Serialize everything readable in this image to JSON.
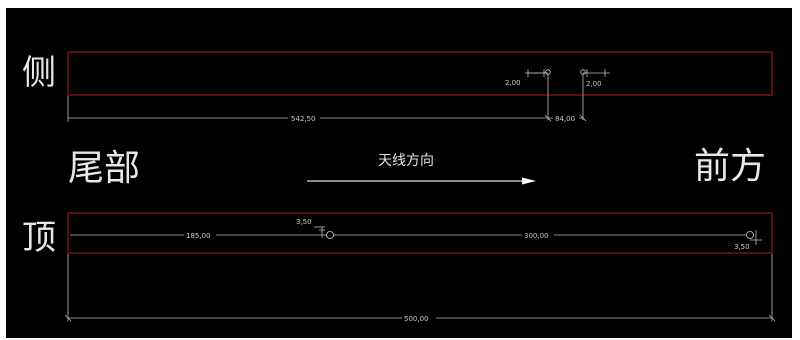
{
  "colors": {
    "background": "#000000",
    "outline": "#9e1b1b",
    "dimension": "#bdbdbd",
    "label": "#e8e8e8"
  },
  "labels": {
    "side": "侧",
    "top": "顶",
    "tail": "尾部",
    "front": "前方",
    "antenna_direction": "天线方向"
  },
  "dimensions": {
    "side_hole_left_offset": "2,00",
    "side_hole_right_offset": "2,00",
    "side_length_to_hole": "542,50",
    "side_hole_spacing": "84,00",
    "top_hole_offset_a": "3,50",
    "top_length_to_hole": "185,00",
    "top_hole_spacing": "300,00",
    "top_hole_offset_b": "3,50",
    "overall_length": "500,00"
  }
}
